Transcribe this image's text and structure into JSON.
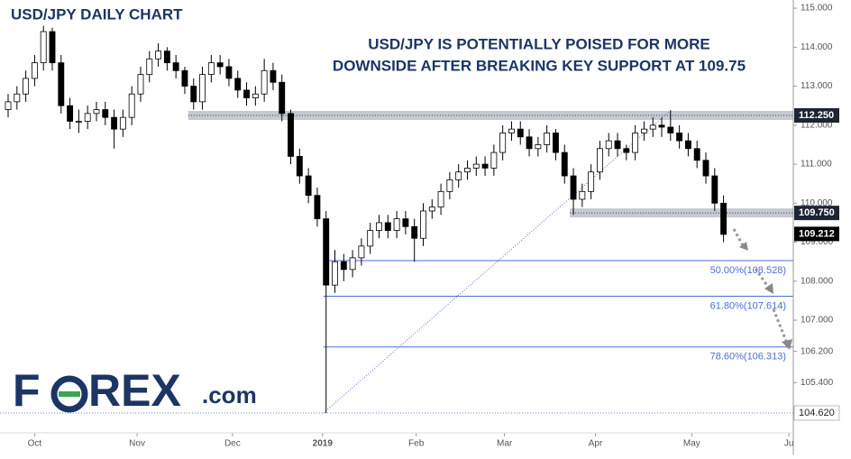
{
  "chart_data": {
    "type": "candlestick",
    "title": "USD/JPY DAILY CHART",
    "annotation": [
      "USD/JPY IS POTENTIALLY POISED FOR MORE",
      "DOWNSIDE AFTER BREAKING KEY SUPPORT AT 109.75"
    ],
    "logo": {
      "start": "F",
      "middle": "REX",
      "suffix": ".com"
    },
    "x": [
      0,
      1,
      2,
      3,
      4,
      5,
      6,
      7,
      8,
      9,
      10,
      11,
      12,
      13,
      14,
      15,
      16,
      17,
      18,
      19,
      20,
      21,
      22,
      23,
      24,
      25,
      26,
      27,
      28,
      29,
      30,
      31,
      32,
      33,
      34,
      35,
      36,
      37,
      38,
      39,
      40,
      41,
      42,
      43,
      44,
      45,
      46,
      47,
      48,
      49,
      50,
      51,
      52,
      53,
      54,
      55,
      56,
      57,
      58,
      59,
      60,
      61,
      62,
      63,
      64,
      65,
      66,
      67,
      68,
      69,
      70,
      71,
      72,
      73,
      74,
      75,
      76,
      77,
      78,
      79,
      80,
      81
    ],
    "open": [
      112.4,
      112.6,
      112.8,
      113.2,
      113.6,
      114.4,
      113.6,
      112.5,
      112.1,
      112.1,
      112.3,
      112.4,
      112.2,
      111.9,
      112.2,
      112.8,
      113.3,
      113.7,
      113.9,
      113.6,
      113.4,
      113.0,
      112.6,
      113.3,
      113.6,
      113.5,
      113.2,
      112.9,
      112.7,
      112.8,
      113.4,
      113.1,
      112.3,
      111.2,
      110.7,
      110.2,
      109.6,
      107.9,
      108.5,
      108.3,
      108.6,
      108.9,
      109.3,
      109.5,
      109.3,
      109.6,
      109.4,
      109.1,
      109.8,
      109.9,
      110.3,
      110.6,
      110.8,
      110.9,
      111.0,
      110.9,
      111.3,
      111.8,
      111.9,
      111.7,
      111.4,
      111.5,
      111.8,
      111.3,
      110.7,
      110.1,
      110.3,
      110.8,
      111.4,
      111.6,
      111.4,
      111.3,
      111.8,
      111.9,
      112.0,
      111.95,
      111.8,
      111.6,
      111.4,
      111.1,
      110.7,
      110.0
    ],
    "high": [
      112.8,
      113.0,
      113.4,
      113.8,
      114.55,
      114.5,
      113.8,
      112.7,
      112.4,
      112.5,
      112.6,
      112.6,
      112.4,
      112.4,
      113.0,
      113.5,
      113.9,
      114.1,
      114.0,
      113.8,
      113.5,
      113.2,
      113.5,
      113.8,
      113.8,
      113.7,
      113.4,
      113.1,
      113.0,
      113.7,
      113.6,
      113.3,
      112.4,
      111.4,
      110.9,
      110.4,
      109.8,
      108.8,
      108.7,
      108.8,
      109.1,
      109.5,
      109.7,
      109.7,
      109.8,
      109.8,
      109.6,
      110.0,
      110.1,
      110.5,
      110.8,
      111.0,
      111.1,
      111.2,
      111.2,
      111.5,
      112.0,
      112.1,
      112.1,
      111.9,
      111.7,
      112.0,
      111.9,
      111.5,
      110.9,
      110.5,
      111.0,
      111.6,
      111.8,
      111.8,
      111.5,
      112.0,
      112.1,
      112.2,
      112.2,
      112.38,
      112.0,
      111.8,
      111.6,
      111.3,
      110.9,
      110.2
    ],
    "low": [
      112.2,
      112.4,
      112.6,
      113.0,
      113.4,
      113.4,
      112.3,
      111.9,
      111.8,
      111.9,
      112.1,
      112.0,
      111.4,
      111.7,
      112.0,
      112.6,
      113.1,
      113.5,
      113.4,
      113.2,
      112.8,
      112.4,
      112.4,
      113.1,
      113.3,
      113.0,
      112.7,
      112.5,
      112.5,
      112.6,
      112.9,
      112.1,
      111.0,
      110.5,
      110.0,
      109.4,
      104.62,
      107.7,
      108.0,
      108.1,
      108.4,
      108.7,
      109.1,
      109.1,
      109.1,
      109.2,
      108.5,
      108.9,
      109.6,
      109.7,
      110.1,
      110.4,
      110.6,
      110.7,
      110.7,
      110.7,
      111.1,
      111.6,
      111.5,
      111.2,
      111.2,
      111.3,
      111.1,
      110.5,
      109.7,
      109.9,
      110.1,
      110.6,
      111.2,
      111.2,
      111.1,
      111.1,
      111.6,
      111.7,
      111.7,
      111.6,
      111.4,
      111.2,
      110.9,
      110.5,
      109.8,
      109.0
    ],
    "close": [
      112.6,
      112.8,
      113.2,
      113.6,
      114.4,
      113.6,
      112.5,
      112.1,
      112.1,
      112.3,
      112.4,
      112.2,
      111.9,
      112.2,
      112.8,
      113.3,
      113.7,
      113.9,
      113.6,
      113.4,
      113.0,
      112.6,
      113.3,
      113.6,
      113.5,
      113.2,
      112.9,
      112.7,
      112.8,
      113.4,
      113.1,
      112.3,
      111.2,
      110.7,
      110.2,
      109.6,
      107.9,
      108.5,
      108.3,
      108.6,
      108.9,
      109.3,
      109.5,
      109.3,
      109.6,
      109.4,
      109.1,
      109.8,
      109.9,
      110.3,
      110.6,
      110.8,
      110.9,
      111.0,
      110.9,
      111.3,
      111.8,
      111.9,
      111.7,
      111.4,
      111.5,
      111.8,
      111.3,
      110.7,
      110.1,
      110.3,
      110.8,
      111.4,
      111.6,
      111.4,
      111.3,
      111.8,
      111.9,
      112.0,
      111.95,
      111.8,
      111.6,
      111.4,
      111.1,
      110.7,
      110.0,
      109.2
    ],
    "up_color": "#ffffff",
    "down_color": "#000000",
    "xlim": [
      -0.92,
      88.9
    ],
    "ylim": [
      103.88,
      115.21
    ],
    "xticks": [
      {
        "value": 3,
        "label": "Oct"
      },
      {
        "value": 14.6,
        "label": "Nov"
      },
      {
        "value": 25.4,
        "label": "Dec"
      },
      {
        "value": 35.6,
        "label": "2019"
      },
      {
        "value": 46.2,
        "label": "Feb"
      },
      {
        "value": 56.2,
        "label": "Mar"
      },
      {
        "value": 66.5,
        "label": "Apr"
      },
      {
        "value": 77.4,
        "label": "May"
      },
      {
        "value": 88.4,
        "label": "Ju"
      }
    ],
    "yticks": [
      {
        "value": 115,
        "label": "115.000"
      },
      {
        "value": 114,
        "label": "114.000"
      },
      {
        "value": 113,
        "label": "113.000"
      },
      {
        "value": 112,
        "label": "112.000"
      },
      {
        "value": 111,
        "label": "111.000"
      },
      {
        "value": 110,
        "label": "110.000"
      },
      {
        "value": 109,
        "label": "109.000"
      },
      {
        "value": 108,
        "label": "108.000"
      },
      {
        "value": 107,
        "label": "107.000"
      },
      {
        "value": 106.2,
        "label": "106.200"
      },
      {
        "value": 105.4,
        "label": "105.400"
      }
    ],
    "zones": [
      {
        "value": 112.25,
        "label": "112.250",
        "x_start": 20.4
      },
      {
        "value": 109.75,
        "label": "109.750",
        "x_start": 63.6
      }
    ],
    "fib_levels": [
      {
        "value": 108.528,
        "label": "50.00%(108.528)"
      },
      {
        "value": 107.614,
        "label": "61.80%(107.614)"
      },
      {
        "value": 106.313,
        "label": "78.60%(106.313)"
      }
    ],
    "fib_x_start": 35.7,
    "low_line": {
      "value": 104.62,
      "label": "104.620"
    },
    "last_price": {
      "value": 109.212,
      "label": "109.212"
    },
    "trendline": {
      "x": [
        35.7,
        75
      ],
      "y": [
        104.62,
        112.38
      ]
    }
  }
}
